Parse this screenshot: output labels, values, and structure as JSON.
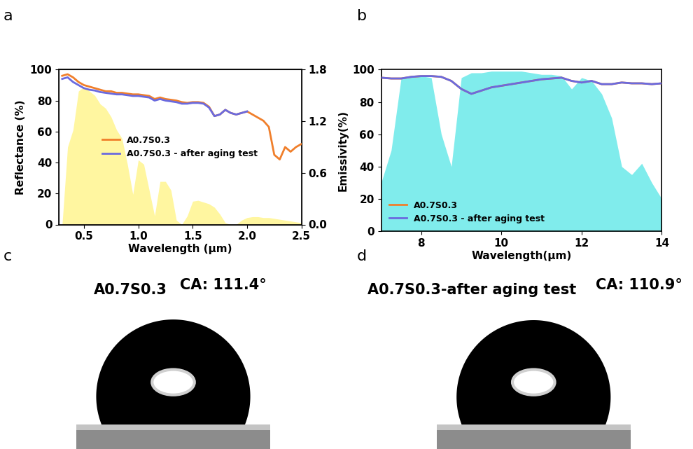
{
  "chart_data": [
    {
      "type": "line",
      "annotations": [
        "a"
      ],
      "x_label": "Wavelength (μm)",
      "y_label": "Reflectance (%)",
      "x": [
        0.3,
        0.35,
        0.4,
        0.45,
        0.5,
        0.55,
        0.6,
        0.65,
        0.7,
        0.75,
        0.8,
        0.85,
        0.9,
        0.95,
        1.0,
        1.05,
        1.1,
        1.15,
        1.2,
        1.25,
        1.3,
        1.35,
        1.4,
        1.45,
        1.5,
        1.55,
        1.6,
        1.65,
        1.7,
        1.75,
        1.8,
        1.85,
        1.9,
        1.95,
        2.0,
        2.05,
        2.1,
        2.15,
        2.2,
        2.25,
        2.3,
        2.35,
        2.4,
        2.45,
        2.5
      ],
      "series": [
        {
          "type": "area",
          "color": "#fff6a0",
          "axis": "y2",
          "values": [
            0.0,
            0.9,
            1.1,
            1.55,
            1.6,
            1.55,
            1.5,
            1.4,
            1.35,
            1.25,
            1.1,
            1.0,
            0.7,
            0.35,
            0.75,
            0.7,
            0.4,
            0.1,
            0.5,
            0.5,
            0.4,
            0.05,
            0.0,
            0.1,
            0.27,
            0.28,
            0.26,
            0.24,
            0.2,
            0.12,
            0.02,
            0.0,
            0.0,
            0.05,
            0.08,
            0.09,
            0.09,
            0.08,
            0.08,
            0.07,
            0.06,
            0.05,
            0.04,
            0.03,
            0.02
          ]
        },
        {
          "name": "A0.7S0.3",
          "color": "#f07f2b",
          "values": [
            96,
            97,
            95,
            92,
            90,
            89,
            88,
            87,
            86,
            86,
            85,
            85,
            84.5,
            84,
            84,
            83.5,
            83,
            81,
            82,
            81,
            80.5,
            80,
            79,
            78.5,
            79,
            79,
            78.5,
            76,
            70,
            71,
            74,
            72,
            71,
            72,
            73,
            71,
            69,
            67,
            63,
            45,
            42,
            50,
            47,
            50,
            52
          ]
        },
        {
          "name": "A0.7S0.3 - after aging test",
          "color": "#6a6adf",
          "values": [
            94,
            95,
            92,
            90,
            88,
            87,
            86.5,
            85.5,
            85,
            84.5,
            84,
            84,
            83.5,
            83,
            83,
            82.5,
            82,
            80,
            81,
            80,
            79.5,
            79,
            78,
            78,
            78.5,
            78.5,
            78,
            75.5,
            70,
            71,
            74,
            72,
            71,
            72,
            73,
            null,
            null,
            null,
            null,
            null,
            null,
            null,
            null,
            null,
            null
          ]
        }
      ],
      "xlim": [
        0.27,
        2.5
      ],
      "xticks": [
        0.5,
        1.0,
        1.5,
        2.0,
        2.5
      ],
      "ylim": [
        0,
        100
      ],
      "yticks": [
        0,
        20,
        40,
        60,
        80,
        100
      ],
      "y2lim": [
        0.0,
        1.8
      ],
      "y2ticks": [
        0.0,
        0.6,
        1.2,
        1.8
      ],
      "legend": "center"
    },
    {
      "type": "line",
      "annotations": [
        "b"
      ],
      "x_label": "Wavelength(μm)",
      "y_label": "Emissivity(%)",
      "x": [
        7.0,
        7.25,
        7.5,
        7.75,
        8.0,
        8.25,
        8.5,
        8.75,
        9.0,
        9.25,
        9.5,
        9.75,
        10.0,
        10.25,
        10.5,
        10.75,
        11.0,
        11.25,
        11.5,
        11.75,
        12.0,
        12.25,
        12.5,
        12.75,
        13.0,
        13.25,
        13.5,
        13.75,
        14.0
      ],
      "series": [
        {
          "type": "area",
          "color": "#80ecec",
          "values": [
            30,
            50,
            95,
            96,
            96,
            95,
            60,
            40,
            95,
            98,
            98,
            99,
            99,
            99,
            99,
            98,
            97,
            97,
            96,
            88,
            95,
            93,
            85,
            70,
            40,
            35,
            42,
            30,
            20
          ]
        },
        {
          "name": "A0.7S0.3",
          "color": "#f07f2b",
          "values": [
            95,
            94.5,
            94.5,
            95.5,
            96,
            96,
            95.5,
            93,
            88,
            85,
            87,
            89,
            90,
            91,
            92,
            93,
            94,
            94.5,
            95,
            93,
            92,
            93,
            91,
            91,
            92,
            91.5,
            91.5,
            91,
            91.5
          ]
        },
        {
          "name": "A0.7S0.3 - after aging test",
          "color": "#6a6adf",
          "values": [
            95,
            94.5,
            94.5,
            95.5,
            96,
            96,
            95.5,
            93,
            88,
            85,
            87,
            89,
            90,
            91,
            92,
            93,
            94,
            94.5,
            95,
            93,
            92,
            93,
            91,
            91,
            92,
            91.5,
            91.5,
            91,
            91.5
          ]
        }
      ],
      "xlim": [
        7,
        14
      ],
      "xticks": [
        8,
        10,
        12,
        14
      ],
      "ylim": [
        0,
        100
      ],
      "yticks": [
        0,
        20,
        40,
        60,
        80,
        100
      ],
      "legend": "lower left"
    }
  ],
  "images": [
    {
      "annotation": "c",
      "title": "A0.7S0.3",
      "label": "CA: 111.4°",
      "contact_angle": 111.4
    },
    {
      "annotation": "d",
      "title": "A0.7S0.3-after aging test",
      "label": "CA: 110.9°",
      "contact_angle": 110.9
    }
  ]
}
